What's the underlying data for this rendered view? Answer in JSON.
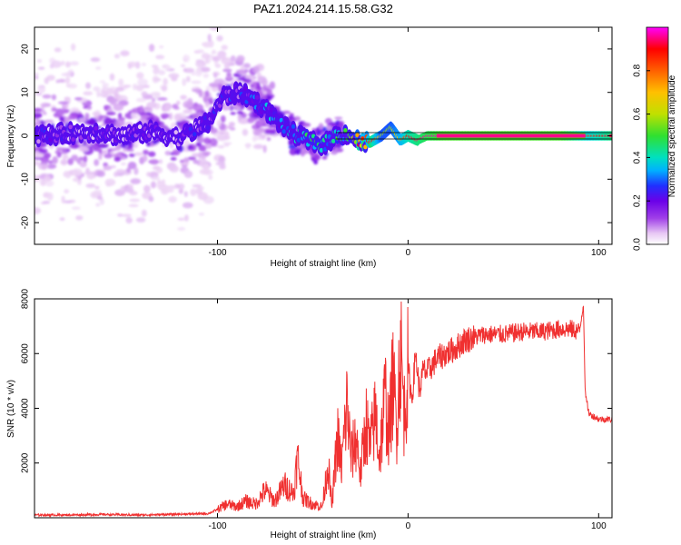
{
  "figure": {
    "title": "PAZ1.2024.214.15.58.G32"
  },
  "chart_data": [
    {
      "type": "heatmap",
      "xlabel": "Height of straight line (km)",
      "ylabel": "Frequency (Hz)",
      "xlim": [
        -196,
        107
      ],
      "ylim": [
        -25,
        25
      ],
      "xticks": [
        -100,
        0,
        100
      ],
      "xtick_labels": [
        "-100",
        "0",
        "100"
      ],
      "yticks": [
        -20,
        -10,
        0,
        10,
        20
      ],
      "ytick_labels": [
        "-20",
        "-10",
        "0",
        "10",
        "20"
      ],
      "colorbar": {
        "label": "Normalized spectral amplitude",
        "range": [
          0,
          1
        ],
        "ticks": [
          0.0,
          0.2,
          0.4,
          0.6,
          0.8
        ],
        "tick_labels": [
          "0.0",
          "0.2",
          "0.4",
          "0.6",
          "0.8"
        ],
        "colormap": [
          "#ffffff",
          "#e8c8f4",
          "#a040e8",
          "#6a00e8",
          "#2030ff",
          "#00b0ff",
          "#00e0c0",
          "#30e030",
          "#c0e000",
          "#ffc000",
          "#ff6000",
          "#ff0000",
          "#ff0080",
          "#ff00ff"
        ]
      },
      "ridge": {
        "x": [
          -196,
          -180,
          -165,
          -150,
          -135,
          -120,
          -105,
          -97,
          -88,
          -80,
          -72,
          -65,
          -58,
          -50,
          -44,
          -38,
          -32,
          -25,
          -20,
          -14,
          -9,
          -4,
          0,
          5,
          10,
          20,
          40,
          60,
          80,
          95,
          107
        ],
        "freq": [
          0,
          0.5,
          1,
          0,
          1,
          -0.5,
          3,
          9,
          10,
          8,
          5,
          2,
          0,
          -1.5,
          -2,
          0,
          0.5,
          -1.5,
          -1.5,
          0,
          2,
          -1,
          0,
          -1,
          0,
          0,
          0,
          0,
          0,
          0,
          0
        ],
        "amplitude": [
          0.3,
          0.3,
          0.3,
          0.3,
          0.3,
          0.3,
          0.3,
          0.35,
          0.35,
          0.4,
          0.45,
          0.5,
          0.5,
          0.55,
          0.5,
          0.55,
          0.6,
          0.9,
          0.95,
          0.6,
          0.6,
          0.7,
          0.85,
          0.9,
          0.95,
          1,
          1,
          1,
          1,
          0.8,
          0.9
        ]
      }
    },
    {
      "type": "line",
      "xlabel": "Height of straight line (km)",
      "ylabel": "SNR (10 * v/v)",
      "xlim": [
        -196,
        107
      ],
      "ylim": [
        0,
        8000
      ],
      "xticks": [
        -100,
        0,
        100
      ],
      "xtick_labels": [
        "-100",
        "0",
        "100"
      ],
      "yticks": [
        2000,
        4000,
        6000,
        8000
      ],
      "ytick_labels": [
        "2000",
        "4000",
        "6000",
        "8000"
      ],
      "color": "#f03030",
      "series": [
        {
          "x": [
            -196,
            -180,
            -160,
            -140,
            -120,
            -105,
            -100,
            -95,
            -90,
            -85,
            -80,
            -75,
            -70,
            -65,
            -60,
            -58,
            -55,
            -50,
            -45,
            -42,
            -40,
            -37,
            -35,
            -32,
            -30,
            -27,
            -25,
            -22,
            -20,
            -17,
            -15,
            -12,
            -10,
            -8,
            -6,
            -4,
            -2,
            0,
            2,
            4,
            6,
            8,
            10,
            15,
            20,
            25,
            30,
            35,
            40,
            50,
            60,
            70,
            80,
            85,
            90,
            92,
            93,
            95,
            100,
            107
          ],
          "y": [
            100,
            100,
            120,
            100,
            130,
            150,
            300,
            500,
            400,
            600,
            500,
            1000,
            600,
            1200,
            900,
            2200,
            700,
            500,
            400,
            2000,
            400,
            3000,
            1800,
            4200,
            2200,
            2900,
            1600,
            3500,
            2500,
            3800,
            2200,
            4500,
            3000,
            5000,
            3400,
            6300,
            3800,
            5500,
            4300,
            6000,
            4600,
            5400,
            5300,
            5800,
            6000,
            6200,
            6500,
            6600,
            6700,
            6700,
            6800,
            6800,
            6900,
            6900,
            6800,
            7800,
            4500,
            3800,
            3600,
            3600
          ]
        }
      ]
    }
  ]
}
